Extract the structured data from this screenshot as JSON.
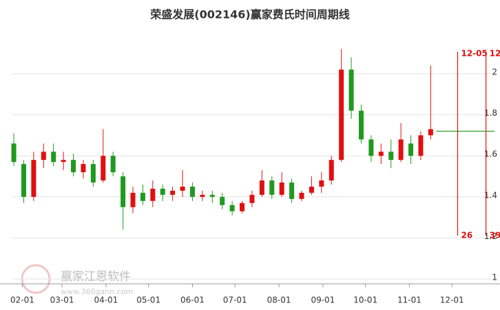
{
  "chart_data": {
    "type": "candlestick",
    "title": "荣盛发展(002146)赢家费氏时间周期线",
    "x": [
      "01-26",
      "02-02",
      "02-09",
      "02-16",
      "02-23",
      "03-02",
      "03-09",
      "03-16",
      "03-23",
      "03-30",
      "04-06",
      "04-13",
      "04-20",
      "04-27",
      "05-04",
      "05-11",
      "05-18",
      "05-25",
      "06-01",
      "06-08",
      "06-15",
      "06-22",
      "06-29",
      "07-06",
      "07-13",
      "07-20",
      "07-27",
      "08-03",
      "08-10",
      "08-17",
      "08-24",
      "08-31",
      "09-07",
      "09-14",
      "09-21",
      "09-28",
      "10-05",
      "10-12",
      "10-19",
      "10-26",
      "11-02",
      "11-09",
      "11-16"
    ],
    "open": [
      1.66,
      1.56,
      1.4,
      1.58,
      1.62,
      1.57,
      1.58,
      1.52,
      1.56,
      1.48,
      1.6,
      1.5,
      1.35,
      1.42,
      1.38,
      1.44,
      1.41,
      1.43,
      1.45,
      1.4,
      1.41,
      1.4,
      1.36,
      1.33,
      1.37,
      1.41,
      1.48,
      1.41,
      1.47,
      1.39,
      1.42,
      1.45,
      1.48,
      1.58,
      2.02,
      1.82,
      1.68,
      1.6,
      1.62,
      1.58,
      1.66,
      1.6,
      1.7
    ],
    "high": [
      1.71,
      1.58,
      1.62,
      1.66,
      1.66,
      1.62,
      1.61,
      1.58,
      1.58,
      1.73,
      1.62,
      1.52,
      1.45,
      1.46,
      1.48,
      1.46,
      1.45,
      1.53,
      1.47,
      1.43,
      1.43,
      1.42,
      1.38,
      1.38,
      1.43,
      1.53,
      1.5,
      1.52,
      1.49,
      1.43,
      1.5,
      1.52,
      1.6,
      2.12,
      2.08,
      1.85,
      1.7,
      1.66,
      1.68,
      1.76,
      1.7,
      1.72,
      2.04
    ],
    "low": [
      1.55,
      1.37,
      1.38,
      1.54,
      1.55,
      1.53,
      1.5,
      1.49,
      1.45,
      1.47,
      1.5,
      1.24,
      1.32,
      1.36,
      1.35,
      1.38,
      1.38,
      1.4,
      1.38,
      1.38,
      1.37,
      1.34,
      1.31,
      1.32,
      1.35,
      1.4,
      1.39,
      1.4,
      1.37,
      1.38,
      1.41,
      1.42,
      1.46,
      1.57,
      1.78,
      1.66,
      1.57,
      1.56,
      1.54,
      1.57,
      1.56,
      1.58,
      1.68
    ],
    "close": [
      1.57,
      1.4,
      1.58,
      1.62,
      1.57,
      1.58,
      1.52,
      1.56,
      1.47,
      1.6,
      1.52,
      1.35,
      1.42,
      1.38,
      1.44,
      1.41,
      1.43,
      1.45,
      1.4,
      1.41,
      1.4,
      1.36,
      1.33,
      1.37,
      1.41,
      1.48,
      1.41,
      1.47,
      1.39,
      1.42,
      1.45,
      1.48,
      1.58,
      2.02,
      1.82,
      1.68,
      1.6,
      1.62,
      1.58,
      1.68,
      1.6,
      1.7,
      1.73
    ],
    "up_color": "#e01010",
    "down_color": "#1f9a1f",
    "projection": {
      "start": "11-20",
      "end": "12-31",
      "value": 1.72,
      "color": "#1f9a1f"
    },
    "xlim": [
      "01-25",
      "12-31"
    ],
    "xticks": [
      "02-01",
      "03-01",
      "04-01",
      "05-01",
      "06-01",
      "07-01",
      "08-01",
      "09-01",
      "10-01",
      "11-01",
      "12-01"
    ],
    "ylim": [
      1,
      2.2
    ],
    "yticks": [
      1,
      1.2,
      1.4,
      1.6,
      1.8,
      2
    ],
    "grid": true,
    "cycle_lines": [
      {
        "date": "12-05",
        "label": "12-05",
        "count": 26
      },
      {
        "date": "12-25",
        "label": "12",
        "count": 39
      }
    ],
    "cycle_color": "#e01010",
    "watermark": {
      "name": "赢家江恩软件",
      "url": "www.360gann.com"
    }
  }
}
